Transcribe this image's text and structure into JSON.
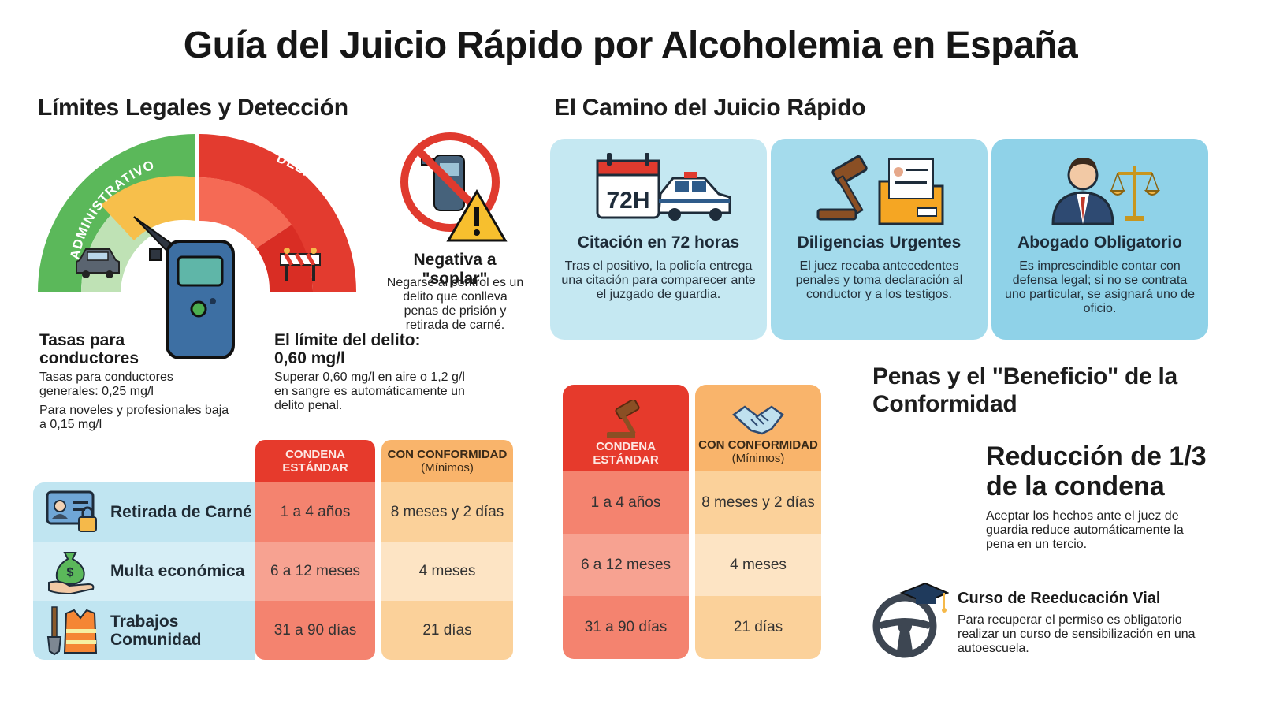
{
  "title": "Guía del Juicio Rápido por Alcoholemia en España",
  "limits": {
    "heading": "Límites Legales y Detección",
    "gauge_admin_label": "ADMINISTRATIVO",
    "gauge_penal_label": "DELITO PENAL",
    "drivers_title": "Tasas para conductores",
    "drivers_text1": "Tasas para conductores generales: 0,25 mg/l",
    "drivers_text2": "Para noveles y profesionales baja a 0,15 mg/l",
    "crime_title": "El límite del delito: 0,60 mg/l",
    "crime_text": "Superar 0,60 mg/l en aire o 1,2 g/l en sangre es automáticamente un delito penal.",
    "refusal_title": "Negativa a \"soplar\"",
    "refusal_text": "Negarse al control es un delito que conlleva penas de prisión y retirada de carné."
  },
  "path": {
    "heading": "El Camino del Juicio Rápido",
    "cards": [
      {
        "icon": "calendar-72h-police-car-icon",
        "calendar_text": "72H",
        "title": "Citación en 72 horas",
        "text": "Tras el positivo, la policía entrega una citación para comparecer ante el juzgado de guardia."
      },
      {
        "icon": "gavel-folder-icon",
        "title": "Diligencias Urgentes",
        "text": "El juez recaba antecedentes penales y toma declaración al conductor y a los testigos."
      },
      {
        "icon": "lawyer-scales-icon",
        "title": "Abogado Obligatorio",
        "text": "Es imprescindible contar con defensa legal; si no se contrata uno particular, se asignará uno de oficio."
      }
    ]
  },
  "table_left": {
    "col_standard": "CONDENA ESTÁNDAR",
    "col_conformity": "CON CONFORMIDAD",
    "col_conformity_sub": "(Mínimos)",
    "rows": [
      {
        "icon": "license-lock-icon",
        "label": "Retirada de Carné",
        "standard": "1 a 4 años",
        "conformity": "8 meses y 2 días"
      },
      {
        "icon": "money-bag-hand-icon",
        "label": "Multa económica",
        "standard": "6 a 12 meses",
        "conformity": "4 meses"
      },
      {
        "icon": "shovel-vest-icon",
        "label": "Trabajos Comunidad",
        "standard": "31 a 90 días",
        "conformity": "21 días"
      }
    ]
  },
  "table_right": {
    "col_standard": "CONDENA ESTÁNDAR",
    "col_conformity": "CON CONFORMIDAD",
    "col_conformity_sub": "(Mínimos)",
    "rows": [
      {
        "standard": "1 a 4 años",
        "conformity": "8 meses y 2 días"
      },
      {
        "standard": "6 a 12 meses",
        "conformity": "4 meses"
      },
      {
        "standard": "31 a 90 días",
        "conformity": "21 días"
      }
    ]
  },
  "penalties": {
    "heading": "Penas y el \"Beneficio\" de la Conformidad",
    "reduction_title": "Reducción de 1/3 de la condena",
    "reduction_text": "Aceptar los hechos ante el juez de guardia reduce automáticamente la pena en un tercio.",
    "course_title": "Curso de Reeducación Vial",
    "course_text": "Para recuperar el permiso es obligatorio realizar un curso de sensibilización en una autoescuela."
  },
  "colors": {
    "green": "#5cb85c",
    "yellow": "#f5b94a",
    "red": "#e03a2e",
    "light_red": "#f4735f",
    "orange": "#f9b46b",
    "light_blue": "#a9dced"
  }
}
